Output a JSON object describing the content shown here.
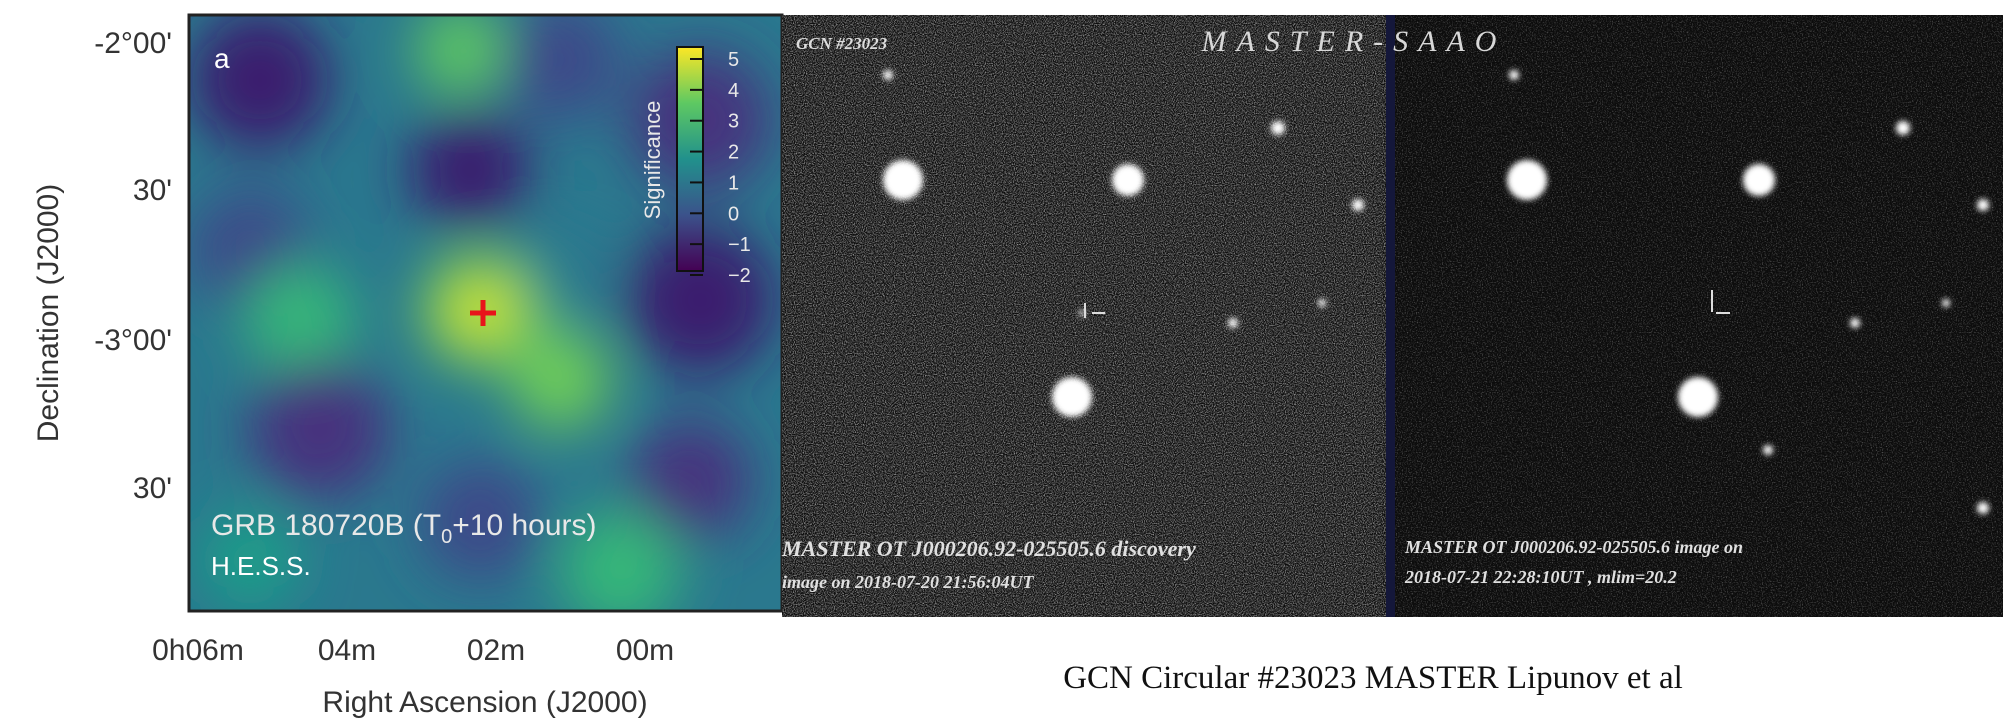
{
  "left_panel": {
    "panel_label": "a",
    "y_ticks": [
      "-2°00'",
      "30'",
      "-3°00'",
      "30'"
    ],
    "x_ticks": [
      "0h06m",
      "04m",
      "02m",
      "00m"
    ],
    "y_label": "Declination (J2000)",
    "x_label": "Right Ascension (J2000)",
    "colorbar_label": "Significance",
    "colorbar_ticks": [
      "5",
      "4",
      "3",
      "2",
      "1",
      "0",
      "−1",
      "−2"
    ],
    "source_text": [
      "GRB 180720B (T",
      "0",
      "+10 hours)"
    ],
    "instrument": "H.E.S.S."
  },
  "right_panel": {
    "circular": "GCN #23023",
    "telescope": "MASTER-SAAO",
    "left_caption": [
      "MASTER OT J000206.92-025505.6 discovery",
      "image on 2018-07-20 21:56:04UT"
    ],
    "right_caption": [
      "MASTER OT J000206.92-025505.6 image on",
      "2018-07-21 22:28:10UT , mlim=20.2"
    ],
    "footer": "GCN Circular #23023 MASTER Lipunov et al"
  }
}
